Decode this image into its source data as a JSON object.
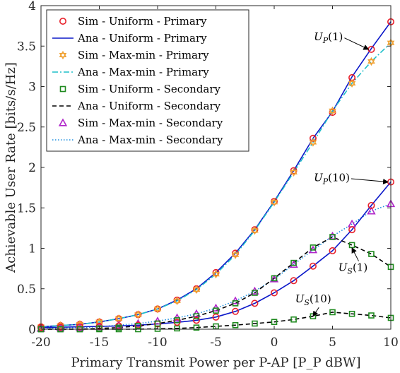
{
  "chart_data": {
    "type": "line",
    "xlabel": "Primary Transmit Power per P-AP [P_P dBW]",
    "ylabel": "Achievable User Rate [bits/s/Hz]",
    "xlim": [
      -20,
      10
    ],
    "ylim": [
      0,
      4
    ],
    "xticks": [
      -20,
      -15,
      -10,
      -5,
      0,
      5,
      10
    ],
    "yticks": [
      0,
      0.5,
      1,
      1.5,
      2,
      2.5,
      3,
      3.5,
      4
    ],
    "xtick_labels": [
      "-20",
      "-15",
      "-10",
      "-5",
      "0",
      "5",
      "10"
    ],
    "ytick_labels": [
      "0",
      "0.5",
      "1",
      "1.5",
      "2",
      "2.5",
      "3",
      "3.5",
      "4"
    ],
    "grid": false,
    "legend_position": "top-left",
    "sim_x": [
      -20,
      -18.33,
      -16.67,
      -15,
      -13.33,
      -11.67,
      -10,
      -8.33,
      -6.67,
      -5,
      -3.33,
      -1.67,
      0,
      1.67,
      3.33,
      5,
      6.67,
      8.33,
      10
    ],
    "series": [
      {
        "name": "Sim - Uniform - Primary",
        "kind": "marker",
        "marker": "circle",
        "color": "#e8202a",
        "y": [
          0.03,
          0.045,
          0.06,
          0.09,
          0.13,
          0.18,
          0.25,
          0.36,
          0.5,
          0.7,
          0.94,
          1.23,
          1.58,
          1.96,
          2.36,
          2.68,
          3.11,
          3.46,
          3.8
        ]
      },
      {
        "name": "Ana - Uniform - Primary",
        "kind": "line",
        "dash": "solid",
        "color": "#0b18c9",
        "y": [
          0.03,
          0.045,
          0.06,
          0.09,
          0.13,
          0.18,
          0.25,
          0.36,
          0.5,
          0.7,
          0.94,
          1.23,
          1.58,
          1.96,
          2.36,
          2.69,
          3.12,
          3.47,
          3.8
        ]
      },
      {
        "name": "Sim - Max-min - Primary",
        "kind": "marker",
        "marker": "hexagram",
        "color": "#f0a030",
        "y": [
          0.03,
          0.045,
          0.06,
          0.09,
          0.13,
          0.18,
          0.25,
          0.35,
          0.49,
          0.68,
          0.92,
          1.22,
          1.57,
          1.94,
          2.31,
          2.7,
          3.04,
          3.31,
          3.54
        ]
      },
      {
        "name": "Ana - Max-min - Primary",
        "kind": "line",
        "dash": "dashdot",
        "color": "#1fbfc9",
        "y": [
          0.03,
          0.045,
          0.06,
          0.09,
          0.13,
          0.18,
          0.25,
          0.35,
          0.49,
          0.68,
          0.92,
          1.22,
          1.57,
          1.94,
          2.31,
          2.7,
          3.04,
          3.31,
          3.54
        ]
      },
      {
        "name": "Sim - Uniform - Secondary",
        "kind": "marker",
        "marker": "square",
        "color": "#1f8a1f",
        "y": [
          0.0,
          0.0,
          0.0,
          0.0,
          0.0,
          0.0,
          0.005,
          0.01,
          0.02,
          0.035,
          0.05,
          0.07,
          0.09,
          0.12,
          0.16,
          0.21,
          0.19,
          0.17,
          0.14
        ]
      },
      {
        "name": "Ana - Uniform - Secondary",
        "kind": "line",
        "dash": "dashed",
        "color": "#000000",
        "y": [
          0.0,
          0.0,
          0.0,
          0.0,
          0.0,
          0.0,
          0.005,
          0.01,
          0.02,
          0.035,
          0.05,
          0.07,
          0.09,
          0.12,
          0.16,
          0.21,
          0.19,
          0.17,
          0.14
        ]
      },
      {
        "name": "Sim - Max-min - Secondary",
        "kind": "marker",
        "marker": "triangle",
        "color": "#b026c9",
        "y": [
          0.01,
          0.015,
          0.02,
          0.03,
          0.05,
          0.07,
          0.1,
          0.14,
          0.19,
          0.26,
          0.35,
          0.47,
          0.62,
          0.8,
          0.98,
          1.15,
          1.3,
          1.46,
          1.55
        ]
      },
      {
        "name": "Ana - Max-min - Secondary",
        "kind": "line",
        "dash": "dotted",
        "color": "#2090e0",
        "y": [
          0.01,
          0.015,
          0.02,
          0.03,
          0.05,
          0.07,
          0.1,
          0.14,
          0.19,
          0.26,
          0.35,
          0.47,
          0.62,
          0.8,
          0.98,
          1.15,
          1.3,
          1.46,
          1.55
        ]
      }
    ],
    "extra_curves": [
      {
        "desc": "Sim - Uniform - Primary (second curve, 10 users)",
        "marker": "circle",
        "color": "#e8202a",
        "y": [
          0.02,
          0.025,
          0.03,
          0.035,
          0.04,
          0.05,
          0.065,
          0.085,
          0.11,
          0.15,
          0.22,
          0.32,
          0.45,
          0.6,
          0.78,
          0.97,
          1.23,
          1.53,
          1.82
        ]
      },
      {
        "desc": "Ana - Uniform - Primary (second curve, 10 users)",
        "line": "solid",
        "color": "#0b18c9",
        "y": [
          0.02,
          0.025,
          0.03,
          0.035,
          0.04,
          0.05,
          0.065,
          0.085,
          0.11,
          0.15,
          0.22,
          0.32,
          0.45,
          0.6,
          0.78,
          0.97,
          1.23,
          1.53,
          1.82
        ]
      },
      {
        "desc": "Sim - Uniform - Secondary (second curve, 1 user)",
        "marker": "square",
        "color": "#1f8a1f",
        "y": [
          0.0,
          0.0,
          0.0,
          0.01,
          0.02,
          0.04,
          0.07,
          0.11,
          0.16,
          0.23,
          0.32,
          0.45,
          0.63,
          0.82,
          1.01,
          1.14,
          1.04,
          0.93,
          0.77
        ]
      },
      {
        "desc": "Ana - Uniform - Secondary (second curve, 1 user)",
        "line": "dashed",
        "color": "#000000",
        "y": [
          0.0,
          0.0,
          0.0,
          0.01,
          0.02,
          0.04,
          0.07,
          0.11,
          0.16,
          0.23,
          0.32,
          0.45,
          0.63,
          0.82,
          1.01,
          1.14,
          1.04,
          0.93,
          0.77
        ]
      }
    ],
    "annotations": [
      {
        "label": "U_P(1)",
        "text_main": "U",
        "text_sub": "P",
        "text_tail": "(1)",
        "point": [
          8.33,
          3.46
        ],
        "text_at": [
          3.4,
          3.57
        ]
      },
      {
        "label": "U_P(10)",
        "text_main": "U",
        "text_sub": "P",
        "text_tail": "(10)",
        "point": [
          10,
          1.82
        ],
        "text_at": [
          3.4,
          1.83
        ]
      },
      {
        "label": "U_S(1)",
        "text_main": "U",
        "text_sub": "S",
        "text_tail": "(1)",
        "point": [
          6.67,
          1.04
        ],
        "text_at": [
          5.5,
          0.72
        ]
      },
      {
        "label": "U_S(10)",
        "text_main": "U",
        "text_sub": "S",
        "text_tail": "(10)",
        "point": [
          3.33,
          0.16
        ],
        "text_at": [
          1.8,
          0.33
        ]
      }
    ]
  }
}
